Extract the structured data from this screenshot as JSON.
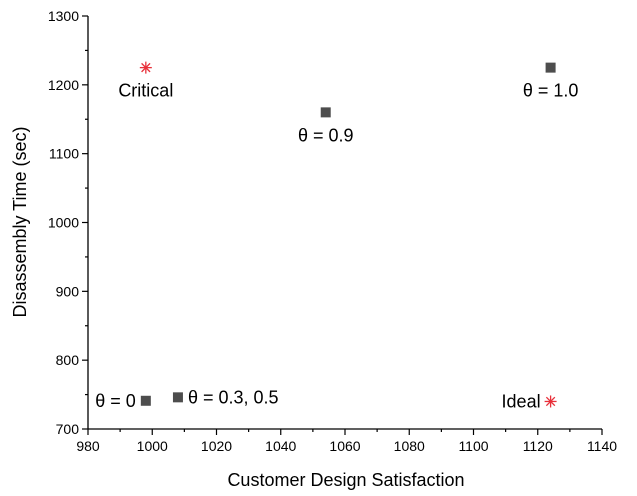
{
  "chart_data": {
    "type": "scatter",
    "xlabel": "Customer Design Satisfaction",
    "ylabel": "Disassembly Time (sec)",
    "xlim": [
      980,
      1140
    ],
    "ylim": [
      700,
      1300
    ],
    "xticks": [
      "980",
      "1000",
      "1020",
      "1040",
      "1060",
      "1080",
      "1100",
      "1120",
      "1140"
    ],
    "yticks": [
      "700",
      "800",
      "900",
      "1000",
      "1100",
      "1200",
      "1300"
    ],
    "grid": false,
    "points": [
      {
        "x": 998,
        "y": 741,
        "marker": "square",
        "color": "#4d4d4d",
        "label": "θ = 0",
        "label_side": "left"
      },
      {
        "x": 1008,
        "y": 746,
        "marker": "square",
        "color": "#4d4d4d",
        "label": "θ = 0.3, 0.5",
        "label_side": "right"
      },
      {
        "x": 1054,
        "y": 1160,
        "marker": "square",
        "color": "#4d4d4d",
        "label": "θ = 0.9",
        "label_side": "below"
      },
      {
        "x": 1124,
        "y": 1225,
        "marker": "square",
        "color": "#4d4d4d",
        "label": "θ = 1.0",
        "label_side": "below"
      },
      {
        "x": 998,
        "y": 1225,
        "marker": "asterisk",
        "color": "#e8303a",
        "label": "Critical",
        "label_side": "below"
      },
      {
        "x": 1124,
        "y": 740,
        "marker": "asterisk",
        "color": "#e8303a",
        "label": "Ideal",
        "label_side": "left"
      }
    ]
  }
}
